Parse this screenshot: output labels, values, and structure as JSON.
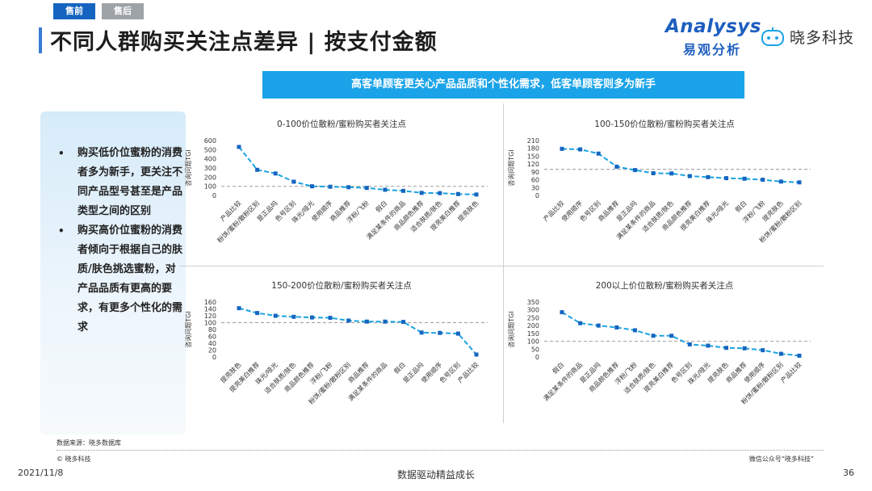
{
  "tabs": {
    "active": "售前",
    "inactive": "售后"
  },
  "title": "不同人群购买关注点差异 | 按支付金额",
  "logos": {
    "analysys_main": "Analysys",
    "analysys_sub": "易观分析",
    "xiaoduo": "晓多科技"
  },
  "banner": "高客单顾客更关心产品品质和个性化需求，低客单顾客则多为新手",
  "sidebar": {
    "bullets": [
      "购买低价位蜜粉的消费者多为新手，更关注不同产品型号甚至是产品类型之间的区别",
      "购买高价位蜜粉的消费者倾向于根据自己的肤质/肤色挑选蜜粉，对产品品质有更高的要求，有更多个性化的需求"
    ]
  },
  "colors": {
    "line": "#1ba3e0",
    "marker": "#1565c0",
    "reference": "#a9a9a9",
    "banner": "#1aa3e8"
  },
  "chart_data": [
    {
      "type": "line",
      "title": "0-100价位散粉/蜜粉购买者关注点",
      "ylabel": "咨询问题TGI",
      "ylim": [
        0,
        600
      ],
      "yticks": [
        0,
        100,
        200,
        300,
        400,
        500,
        600
      ],
      "reference_line": 100,
      "categories": [
        "产品比较",
        "粉饼/蜜粉/散粉区别",
        "是正品吗",
        "色号区别",
        "珠光/哑光",
        "使用顺序",
        "商品推荐",
        "浮粉/飞粉",
        "假白",
        "满足某条件的商品",
        "商品颜色推荐",
        "适合肤质/肤色",
        "提亮美白推荐",
        "提亮肤色"
      ],
      "values": [
        530,
        280,
        240,
        150,
        100,
        95,
        90,
        82,
        62,
        50,
        28,
        25,
        15,
        10
      ]
    },
    {
      "type": "line",
      "title": "100-150价位散粉/蜜粉购买者关注点",
      "ylabel": "咨询问题TGI",
      "ylim": [
        0,
        210
      ],
      "yticks": [
        0,
        30,
        60,
        90,
        120,
        150,
        180,
        210
      ],
      "reference_line": 100,
      "categories": [
        "产品比较",
        "使用顺序",
        "色号区别",
        "商品推荐",
        "是正品吗",
        "满足某条件的商品",
        "适合肤质/肤色",
        "商品颜色推荐",
        "提亮美白推荐",
        "珠光/哑光",
        "假白",
        "浮粉/飞粉",
        "提亮肤色",
        "粉饼/蜜粉/散粉区别"
      ],
      "values": [
        178,
        176,
        160,
        110,
        97,
        85,
        84,
        74,
        70,
        66,
        64,
        60,
        53,
        50
      ]
    },
    {
      "type": "line",
      "title": "150-200价位散粉/蜜粉购买者关注点",
      "ylabel": "咨询问题TGI",
      "ylim": [
        0,
        160
      ],
      "yticks": [
        0,
        20,
        40,
        60,
        80,
        100,
        120,
        140,
        160
      ],
      "reference_line": 100,
      "categories": [
        "提亮肤色",
        "提亮美白推荐",
        "珠光/哑光",
        "适合肤质/肤色",
        "商品颜色推荐",
        "浮粉/飞粉",
        "粉饼/蜜粉/散粉区别",
        "商品推荐",
        "满足某条件的商品",
        "假白",
        "是正品吗",
        "使用顺序",
        "色号区别",
        "产品比较"
      ],
      "values": [
        142,
        128,
        120,
        117,
        115,
        114,
        106,
        103,
        103,
        102,
        71,
        70,
        68,
        7
      ]
    },
    {
      "type": "line",
      "title": "200以上价位散粉/蜜粉购买者关注点",
      "ylabel": "咨询问题TGI",
      "ylim": [
        0,
        350
      ],
      "yticks": [
        0,
        50,
        100,
        150,
        200,
        250,
        300,
        350
      ],
      "reference_line": 100,
      "categories": [
        "假白",
        "满足某条件的商品",
        "是正品吗",
        "商品颜色推荐",
        "浮粉/飞粉",
        "适合肤质/肤色",
        "提亮美白推荐",
        "色号区别",
        "珠光/哑光",
        "提亮肤色",
        "商品推荐",
        "使用顺序",
        "粉饼/蜜粉/散粉区别",
        "产品比较"
      ],
      "values": [
        285,
        215,
        200,
        188,
        170,
        135,
        135,
        80,
        72,
        58,
        55,
        43,
        20,
        8
      ]
    }
  ],
  "footer": {
    "source": "数据来源：晓多数据库",
    "copyright": "© 晓多科技",
    "wechat": "微信公众号“晓多科技”",
    "date": "2021/11/8",
    "slogan": "数据驱动精益成长",
    "page": "36"
  }
}
